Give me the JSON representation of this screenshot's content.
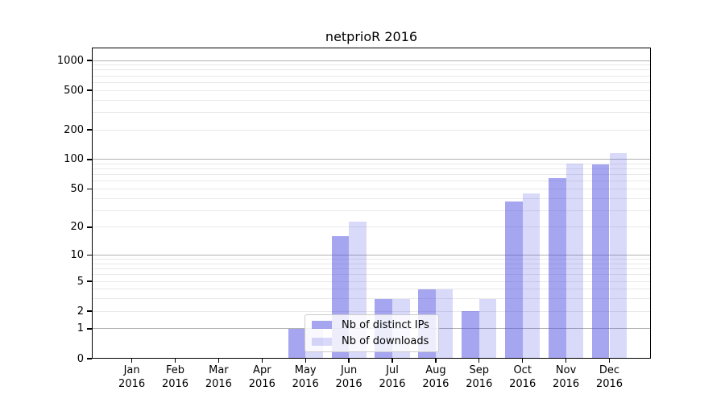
{
  "title": "netprioR 2016",
  "legend": {
    "items": [
      {
        "label": "Nb of distinct IPs",
        "color": "rgba(75,75,225,0.5)"
      },
      {
        "label": "Nb of downloads",
        "color": "rgba(75,75,225,0.21)"
      }
    ]
  },
  "chart_data": {
    "type": "bar",
    "title": "netprioR 2016",
    "categories": [
      "Jan 2016",
      "Feb 2016",
      "Mar 2016",
      "Apr 2016",
      "May 2016",
      "Jun 2016",
      "Jul 2016",
      "Aug 2016",
      "Sep 2016",
      "Oct 2016",
      "Nov 2016",
      "Dec 2016"
    ],
    "series": [
      {
        "name": "Nb of distinct IPs",
        "values": [
          0,
          0,
          0,
          0,
          1,
          16,
          3,
          4,
          2,
          37,
          65,
          89
        ]
      },
      {
        "name": "Nb of downloads",
        "values": [
          0,
          0,
          0,
          0,
          1,
          23,
          3,
          4,
          3,
          45,
          90,
          115
        ]
      }
    ],
    "xlabel": "",
    "ylabel": "",
    "yscale": "symlog",
    "ylim": [
      0,
      1300
    ],
    "yticks": [
      0,
      1,
      2,
      5,
      10,
      20,
      50,
      100,
      200,
      500,
      1000
    ],
    "major_gridlines": [
      1,
      10,
      100,
      1000
    ],
    "minor_gridlines": [
      2,
      3,
      4,
      5,
      6,
      7,
      8,
      9,
      20,
      30,
      40,
      50,
      60,
      70,
      80,
      90,
      200,
      300,
      400,
      500,
      600,
      700,
      800,
      900
    ],
    "grid": true,
    "legend_position": "inside lower-center"
  },
  "colors": {
    "bar_distinct_ips": "rgba(75,75,225,0.5)",
    "bar_downloads": "rgba(75,75,225,0.21)",
    "gridline_major": "#b2b2b2",
    "gridline_minor": "#e9e9e9",
    "background": "#ffffff",
    "text": "#000000"
  }
}
